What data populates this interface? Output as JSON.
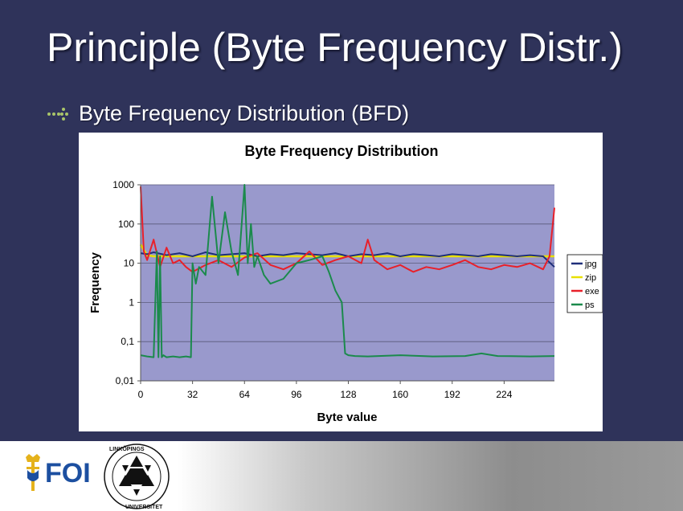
{
  "slide": {
    "title": "Principle (Byte Frequency Distr.)",
    "bullet": "Byte Frequency Distribution (BFD)"
  },
  "logos": {
    "foi": "FOI",
    "liu": "LINKÖPINGS UNIVERSITET"
  },
  "colors": {
    "background": "#2f335a",
    "plot_area": "#9999cc",
    "jpg": "#1f2f7a",
    "zip": "#e8e000",
    "exe": "#e8202a",
    "ps": "#1b8a4c"
  },
  "chart_data": {
    "type": "line",
    "title": "Byte Frequency Distribution",
    "xlabel": "Byte value",
    "ylabel": "Frequency",
    "xlim": [
      0,
      255
    ],
    "ylim": [
      0.01,
      1000
    ],
    "yscale": "log",
    "x_ticks": [
      "0",
      "32",
      "64",
      "96",
      "128",
      "160",
      "192",
      "224"
    ],
    "y_ticks": [
      "0,01",
      "0,1",
      "1",
      "10",
      "100",
      "1000"
    ],
    "grid": "horizontal",
    "legend": "right",
    "series": [
      {
        "name": "jpg",
        "x": [
          0,
          4,
          8,
          16,
          24,
          32,
          40,
          48,
          56,
          64,
          72,
          80,
          88,
          96,
          104,
          112,
          120,
          128,
          136,
          144,
          152,
          160,
          168,
          176,
          184,
          192,
          200,
          208,
          216,
          224,
          232,
          240,
          248,
          255
        ],
        "y": [
          18,
          17,
          19,
          16,
          18,
          15,
          19,
          16,
          17,
          18,
          15,
          17,
          16,
          18,
          17,
          16,
          18,
          15,
          17,
          16,
          18,
          15,
          17,
          16,
          15,
          17,
          16,
          15,
          17,
          16,
          15,
          16,
          15,
          8
        ]
      },
      {
        "name": "zip",
        "x": [
          0,
          2,
          4,
          8,
          16,
          32,
          64,
          96,
          128,
          160,
          192,
          224,
          255
        ],
        "y": [
          30,
          22,
          16,
          15,
          15,
          15,
          15,
          15,
          15,
          15,
          15,
          15,
          15
        ]
      },
      {
        "name": "exe",
        "x": [
          0,
          2,
          4,
          8,
          12,
          16,
          20,
          24,
          28,
          32,
          40,
          48,
          56,
          64,
          72,
          80,
          88,
          96,
          104,
          112,
          120,
          128,
          136,
          140,
          144,
          152,
          160,
          168,
          176,
          184,
          192,
          200,
          208,
          216,
          224,
          232,
          240,
          248,
          252,
          255
        ],
        "y": [
          900,
          20,
          12,
          40,
          8,
          25,
          10,
          12,
          8,
          6,
          9,
          12,
          8,
          14,
          18,
          9,
          7,
          10,
          20,
          9,
          12,
          15,
          10,
          40,
          12,
          7,
          9,
          6,
          8,
          7,
          9,
          12,
          8,
          7,
          9,
          8,
          10,
          7,
          15,
          260
        ]
      },
      {
        "name": "ps",
        "x": [
          0,
          4,
          8,
          10,
          11,
          12,
          13,
          14,
          16,
          20,
          24,
          28,
          31,
          32,
          34,
          36,
          40,
          44,
          48,
          52,
          56,
          60,
          64,
          66,
          68,
          70,
          72,
          76,
          80,
          88,
          96,
          104,
          112,
          116,
          120,
          124,
          126,
          128,
          132,
          140,
          160,
          180,
          200,
          210,
          220,
          240,
          255
        ],
        "y": [
          0.045,
          0.042,
          0.04,
          20,
          0.04,
          15,
          0.04,
          0.045,
          0.04,
          0.042,
          0.04,
          0.042,
          0.04,
          10,
          3,
          8,
          5,
          500,
          10,
          200,
          20,
          5,
          1000,
          10,
          100,
          8,
          15,
          5,
          3,
          4,
          10,
          12,
          15,
          6,
          2,
          1,
          0.05,
          0.045,
          0.043,
          0.042,
          0.045,
          0.042,
          0.043,
          0.05,
          0.043,
          0.042,
          0.043
        ]
      }
    ]
  }
}
